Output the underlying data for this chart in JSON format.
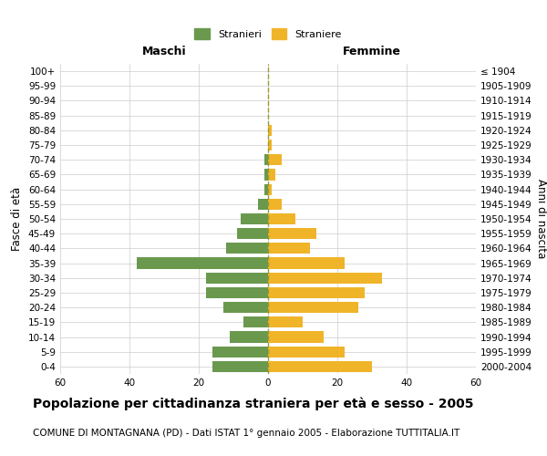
{
  "age_groups": [
    "0-4",
    "5-9",
    "10-14",
    "15-19",
    "20-24",
    "25-29",
    "30-34",
    "35-39",
    "40-44",
    "45-49",
    "50-54",
    "55-59",
    "60-64",
    "65-69",
    "70-74",
    "75-79",
    "80-84",
    "85-89",
    "90-94",
    "95-99",
    "100+"
  ],
  "birth_years": [
    "2000-2004",
    "1995-1999",
    "1990-1994",
    "1985-1989",
    "1980-1984",
    "1975-1979",
    "1970-1974",
    "1965-1969",
    "1960-1964",
    "1955-1959",
    "1950-1954",
    "1945-1949",
    "1940-1944",
    "1935-1939",
    "1930-1934",
    "1925-1929",
    "1920-1924",
    "1915-1919",
    "1910-1914",
    "1905-1909",
    "≤ 1904"
  ],
  "maschi": [
    16,
    16,
    11,
    7,
    13,
    18,
    18,
    38,
    12,
    9,
    8,
    3,
    1,
    1,
    1,
    0,
    0,
    0,
    0,
    0,
    0
  ],
  "femmine": [
    30,
    22,
    16,
    10,
    26,
    28,
    33,
    22,
    12,
    14,
    8,
    4,
    1,
    2,
    4,
    1,
    1,
    0,
    0,
    0,
    0
  ],
  "xlim": 60,
  "color_maschi": "#6a994e",
  "color_femmine": "#f0b429",
  "color_center_line": "#999933",
  "title": "Popolazione per cittadinanza straniera per età e sesso - 2005",
  "subtitle": "COMUNE DI MONTAGNANA (PD) - Dati ISTAT 1° gennaio 2005 - Elaborazione TUTTITALIA.IT",
  "ylabel_left": "Fasce di età",
  "ylabel_right": "Anni di nascita",
  "legend_maschi": "Stranieri",
  "legend_femmine": "Straniere",
  "header_maschi": "Maschi",
  "header_femmine": "Femmine",
  "bg_color": "#ffffff",
  "grid_color": "#cccccc",
  "title_fontsize": 10,
  "subtitle_fontsize": 7.5,
  "tick_fontsize": 7.5,
  "label_fontsize": 8.5,
  "header_fontsize": 9
}
